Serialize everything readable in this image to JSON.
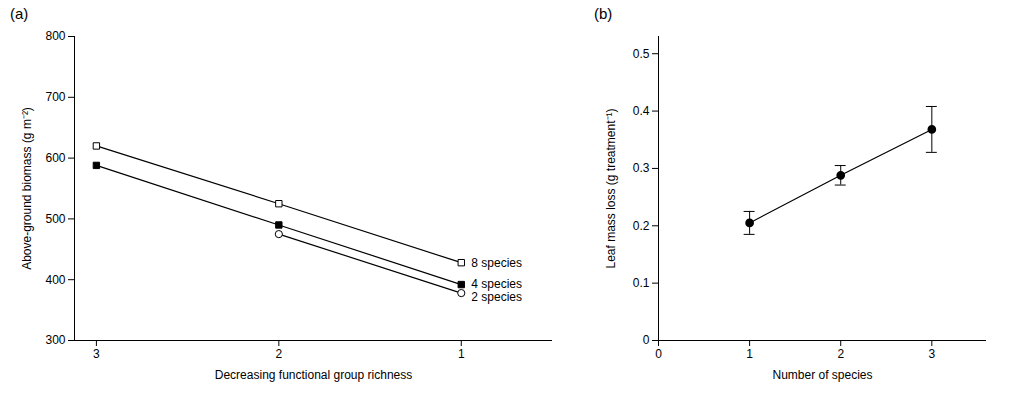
{
  "chart_data": [
    {
      "type": "line",
      "title": "(a)",
      "xlabel": "Decreasing functional group richness",
      "ylabel": "Above-ground biomass (g m⁻²)",
      "x": [
        3,
        2,
        1
      ],
      "xlim": [
        3.12,
        0.5
      ],
      "xticks": [
        3,
        2,
        1
      ],
      "ylim": [
        300,
        800
      ],
      "yticks": [
        300,
        400,
        500,
        600,
        700,
        800
      ],
      "legend": "right",
      "series": [
        {
          "name": "8 species",
          "color": "#000000",
          "marker": "square-open",
          "values": [
            620,
            525,
            428
          ]
        },
        {
          "name": "4 species",
          "color": "#000000",
          "marker": "square",
          "values": [
            588,
            490,
            392
          ]
        },
        {
          "name": "2 species",
          "color": "#000000",
          "marker": "circle-open",
          "values": [
            null,
            475,
            378
          ]
        }
      ]
    },
    {
      "type": "line",
      "title": "(b)",
      "xlabel": "Number of species",
      "ylabel": "Leaf mass loss (g treatment⁻¹)",
      "x": [
        1,
        2,
        3
      ],
      "xlim": [
        0,
        3.6
      ],
      "xticks": [
        0,
        1,
        2,
        3
      ],
      "ylim": [
        0,
        0.53
      ],
      "yticks": [
        0,
        0.1,
        0.2,
        0.3,
        0.4,
        0.5
      ],
      "color": "#000000",
      "marker": "circle",
      "values": [
        0.205,
        0.288,
        0.368
      ],
      "errors": [
        0.02,
        0.017,
        0.04
      ]
    }
  ]
}
